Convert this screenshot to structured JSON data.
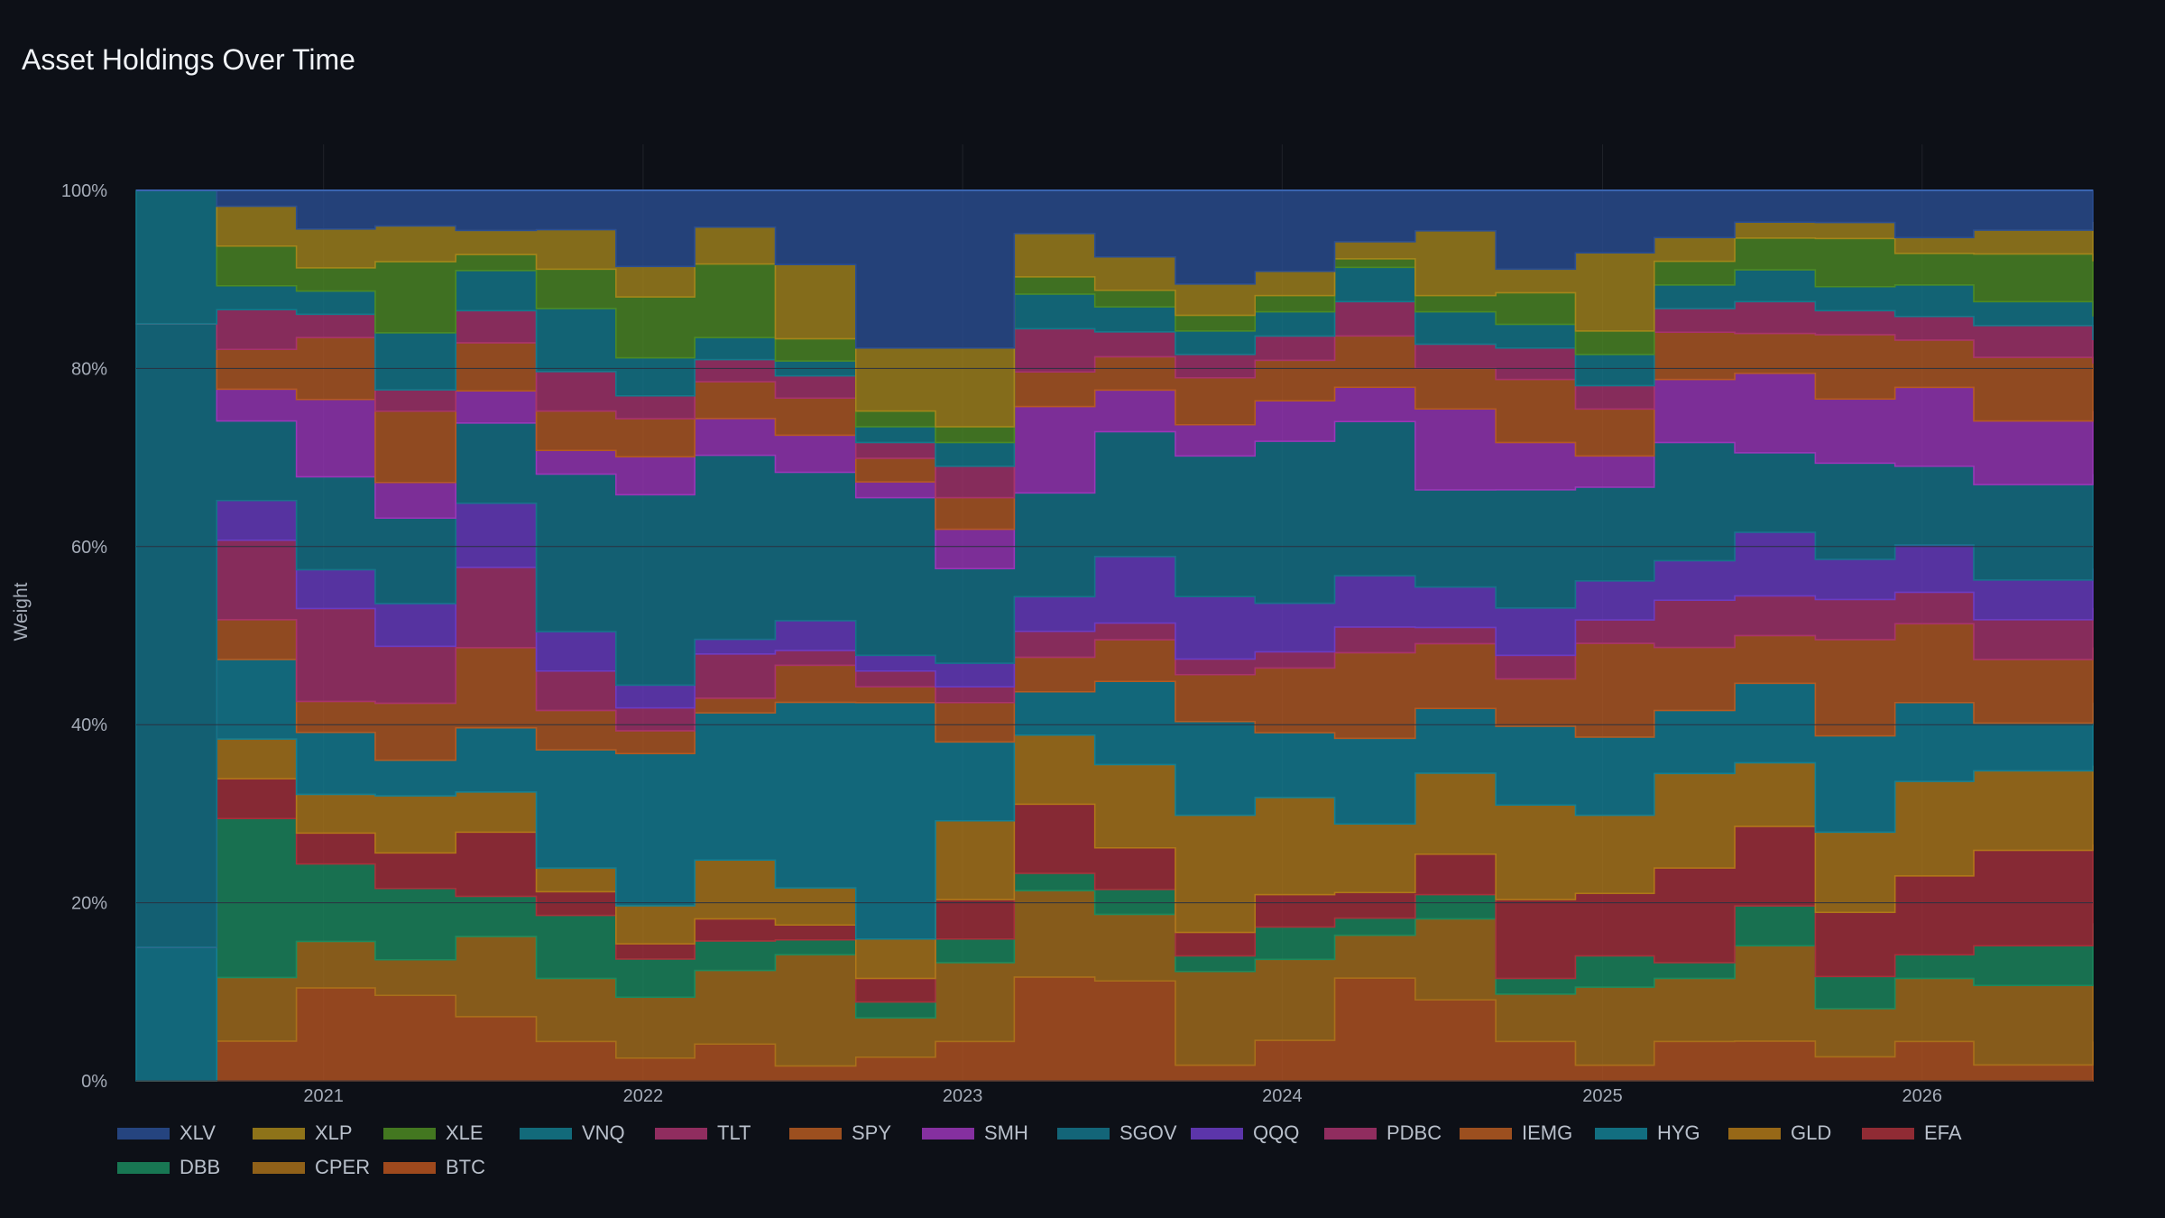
{
  "title": "Asset Holdings Over Time",
  "chart_data": {
    "type": "area",
    "stacked": true,
    "normalized": true,
    "ylabel": "Weight",
    "xlabel": "",
    "xlim": [
      "2020-06-01",
      "2026-07-15"
    ],
    "ylim": [
      0,
      1
    ],
    "y_ticks": [
      "0%",
      "20%",
      "40%",
      "60%",
      "80%",
      "100%"
    ],
    "x_ticks": [
      "2021",
      "2022",
      "2023",
      "2024",
      "2025",
      "2026"
    ],
    "grid": true,
    "legend_position": "bottom",
    "x": [
      "2020-06",
      "2020-09",
      "2020-12",
      "2021-03",
      "2021-06",
      "2021-09",
      "2021-12",
      "2022-03",
      "2022-06",
      "2022-09",
      "2022-12",
      "2023-03",
      "2023-06",
      "2023-09",
      "2023-12",
      "2024-03",
      "2024-06",
      "2024-09",
      "2024-12",
      "2025-03",
      "2025-06",
      "2025-09",
      "2025-12",
      "2026-03",
      "2026-06"
    ],
    "series": [
      {
        "name": "BTC",
        "color": "#b8541f",
        "values": [
          0,
          0.05,
          0.12,
          0.12,
          0.08,
          0.05,
          0.03,
          0.05,
          0.02,
          0.03,
          0.05,
          0.12,
          0.12,
          0.02,
          0.05,
          0.12,
          0.1,
          0.05,
          0.02,
          0.05,
          0.05,
          0.03,
          0.05,
          0.02,
          0.05
        ]
      },
      {
        "name": "CPER",
        "color": "#a8701a",
        "values": [
          0,
          0.08,
          0.06,
          0.05,
          0.1,
          0.08,
          0.08,
          0.1,
          0.15,
          0.05,
          0.1,
          0.1,
          0.08,
          0.12,
          0.1,
          0.05,
          0.1,
          0.06,
          0.1,
          0.08,
          0.12,
          0.06,
          0.08,
          0.1,
          0.07
        ]
      },
      {
        "name": "DBB",
        "color": "#1b8a5e",
        "values": [
          0,
          0.2,
          0.1,
          0.1,
          0.05,
          0.08,
          0.05,
          0.04,
          0.02,
          0.02,
          0.03,
          0.02,
          0.03,
          0.02,
          0.04,
          0.02,
          0.03,
          0.02,
          0.04,
          0.02,
          0.05,
          0.04,
          0.03,
          0.05,
          0.08
        ]
      },
      {
        "name": "EFA",
        "color": "#a8303a",
        "values": [
          0,
          0.05,
          0.04,
          0.05,
          0.08,
          0.03,
          0.02,
          0.03,
          0.02,
          0.03,
          0.05,
          0.08,
          0.05,
          0.03,
          0.04,
          0.03,
          0.05,
          0.1,
          0.08,
          0.12,
          0.1,
          0.08,
          0.1,
          0.12,
          0.1
        ]
      },
      {
        "name": "GLD",
        "color": "#b07818",
        "values": [
          0,
          0.05,
          0.05,
          0.08,
          0.05,
          0.03,
          0.05,
          0.08,
          0.05,
          0.05,
          0.1,
          0.08,
          0.1,
          0.15,
          0.12,
          0.08,
          0.1,
          0.12,
          0.1,
          0.12,
          0.08,
          0.1,
          0.12,
          0.1,
          0.1
        ]
      },
      {
        "name": "HYG",
        "color": "#137f93",
        "values": [
          0.15,
          0.1,
          0.08,
          0.05,
          0.08,
          0.15,
          0.2,
          0.2,
          0.25,
          0.3,
          0.1,
          0.05,
          0.1,
          0.12,
          0.08,
          0.1,
          0.08,
          0.1,
          0.1,
          0.08,
          0.1,
          0.12,
          0.1,
          0.06,
          0.08
        ]
      },
      {
        "name": "IEMG",
        "color": "#b55a21",
        "values": [
          0,
          0.05,
          0.04,
          0.08,
          0.1,
          0.05,
          0.03,
          0.02,
          0.05,
          0.02,
          0.05,
          0.04,
          0.05,
          0.06,
          0.08,
          0.1,
          0.08,
          0.06,
          0.12,
          0.08,
          0.06,
          0.12,
          0.1,
          0.08,
          0.07
        ]
      },
      {
        "name": "PDBC",
        "color": "#a8336c",
        "values": [
          0,
          0.1,
          0.12,
          0.08,
          0.1,
          0.05,
          0.03,
          0.06,
          0.02,
          0.02,
          0.02,
          0.03,
          0.02,
          0.02,
          0.02,
          0.03,
          0.02,
          0.03,
          0.03,
          0.06,
          0.05,
          0.05,
          0.04,
          0.05,
          0.05
        ]
      },
      {
        "name": "QQQ",
        "color": "#6a3cc4",
        "values": [
          0,
          0.05,
          0.05,
          0.06,
          0.08,
          0.05,
          0.03,
          0.02,
          0.04,
          0.02,
          0.03,
          0.04,
          0.08,
          0.08,
          0.06,
          0.06,
          0.05,
          0.06,
          0.05,
          0.05,
          0.08,
          0.05,
          0.06,
          0.05,
          0.05
        ]
      },
      {
        "name": "SGOV",
        "color": "#157489",
        "values": [
          0.7,
          0.1,
          0.12,
          0.12,
          0.1,
          0.2,
          0.25,
          0.25,
          0.2,
          0.2,
          0.12,
          0.12,
          0.15,
          0.18,
          0.2,
          0.18,
          0.12,
          0.15,
          0.12,
          0.15,
          0.1,
          0.12,
          0.1,
          0.12,
          0.12
        ]
      },
      {
        "name": "SMH",
        "color": "#9b36b8",
        "values": [
          0,
          0.04,
          0.1,
          0.05,
          0.04,
          0.03,
          0.05,
          0.05,
          0.05,
          0.02,
          0.05,
          0.1,
          0.05,
          0.04,
          0.05,
          0.04,
          0.1,
          0.06,
          0.04,
          0.08,
          0.1,
          0.08,
          0.1,
          0.08,
          0.08
        ]
      },
      {
        "name": "SPY",
        "color": "#b55a21",
        "values": [
          0,
          0.05,
          0.08,
          0.1,
          0.06,
          0.05,
          0.05,
          0.05,
          0.05,
          0.03,
          0.04,
          0.04,
          0.04,
          0.06,
          0.05,
          0.06,
          0.05,
          0.08,
          0.06,
          0.06,
          0.05,
          0.08,
          0.06,
          0.08,
          0.06
        ]
      },
      {
        "name": "TLT",
        "color": "#a8336c",
        "values": [
          0,
          0.05,
          0.03,
          0.03,
          0.04,
          0.05,
          0.03,
          0.03,
          0.03,
          0.02,
          0.04,
          0.05,
          0.03,
          0.03,
          0.03,
          0.04,
          0.03,
          0.04,
          0.03,
          0.03,
          0.04,
          0.03,
          0.03,
          0.04,
          0.03
        ]
      },
      {
        "name": "VNQ",
        "color": "#137a8c",
        "values": [
          0.15,
          0.03,
          0.03,
          0.08,
          0.05,
          0.08,
          0.05,
          0.03,
          0.02,
          0.02,
          0.03,
          0.04,
          0.03,
          0.03,
          0.03,
          0.04,
          0.04,
          0.03,
          0.04,
          0.03,
          0.04,
          0.03,
          0.04,
          0.03,
          0.03
        ]
      },
      {
        "name": "XLE",
        "color": "#4d8a22",
        "values": [
          0,
          0.05,
          0.03,
          0.1,
          0.02,
          0.05,
          0.08,
          0.1,
          0.03,
          0.02,
          0.02,
          0.02,
          0.02,
          0.02,
          0.02,
          0.01,
          0.02,
          0.04,
          0.03,
          0.03,
          0.04,
          0.06,
          0.04,
          0.06,
          0.07
        ]
      },
      {
        "name": "XLP",
        "color": "#a5851a",
        "values": [
          0,
          0.05,
          0.05,
          0.05,
          0.03,
          0.05,
          0.04,
          0.05,
          0.1,
          0.08,
          0.1,
          0.05,
          0.04,
          0.04,
          0.03,
          0.02,
          0.08,
          0.03,
          0.1,
          0.03,
          0.02,
          0.02,
          0.02,
          0.03,
          0.05
        ]
      },
      {
        "name": "XLV",
        "color": "#2a4e92",
        "values": [
          0,
          0.02,
          0.05,
          0.05,
          0.05,
          0.05,
          0.1,
          0.05,
          0.1,
          0.2,
          0.2,
          0.05,
          0.08,
          0.12,
          0.1,
          0.06,
          0.05,
          0.1,
          0.08,
          0.06,
          0.04,
          0.04,
          0.06,
          0.05,
          0.04
        ]
      }
    ]
  },
  "legend_order": [
    "XLV",
    "XLP",
    "XLE",
    "VNQ",
    "TLT",
    "SPY",
    "SMH",
    "SGOV",
    "QQQ",
    "PDBC",
    "IEMG",
    "HYG",
    "GLD",
    "EFA",
    "DBB",
    "CPER",
    "BTC"
  ]
}
